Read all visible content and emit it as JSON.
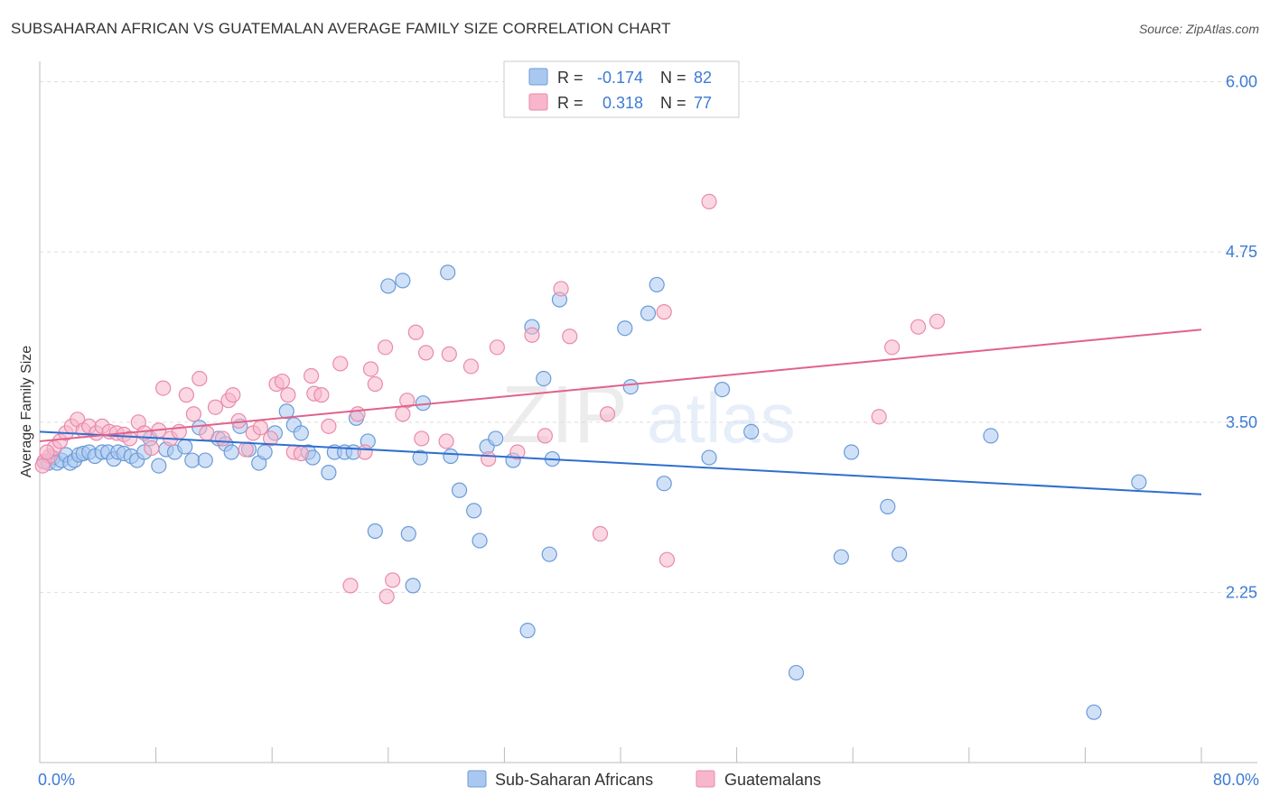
{
  "title": "SUBSAHARAN AFRICAN VS GUATEMALAN AVERAGE FAMILY SIZE CORRELATION CHART",
  "source": "Source: ZipAtlas.com",
  "watermark": {
    "part1": "ZIP",
    "part2": "atlas"
  },
  "colors": {
    "blue_fill": "#a9c8f0",
    "blue_stroke": "#6b9bd8",
    "blue_line": "#2f6fcf",
    "pink_fill": "#f7b6cb",
    "pink_stroke": "#e98aab",
    "pink_line": "#e0628d",
    "axis_text": "#3d7bd4",
    "grid": "#dddddd",
    "axis": "#bbbbbb"
  },
  "legend_top": [
    {
      "r_label": "R =",
      "r_value": "-0.174",
      "n_label": "N =",
      "n_value": "82",
      "color": "blue"
    },
    {
      "r_label": "R =",
      "r_value": "0.318",
      "n_label": "N =",
      "n_value": "77",
      "color": "pink"
    }
  ],
  "chart_data": {
    "type": "scatter",
    "xlabel": "",
    "ylabel": "Average Family Size",
    "xlim": [
      0,
      80
    ],
    "ylim": [
      1.0,
      6.15
    ],
    "x_tick_labels": [
      {
        "value": 0,
        "label": "0.0%"
      },
      {
        "value": 80,
        "label": "80.0%"
      }
    ],
    "x_minor_ticks": [
      0,
      8,
      16,
      24,
      32,
      40,
      48,
      56,
      64,
      72,
      80
    ],
    "y_ticks": [
      {
        "value": 2.25,
        "label": "2.25"
      },
      {
        "value": 3.5,
        "label": "3.50"
      },
      {
        "value": 4.75,
        "label": "4.75"
      },
      {
        "value": 6.0,
        "label": "6.00"
      }
    ],
    "grid": true,
    "legend_position": "bottom",
    "series": [
      {
        "name": "Sub-Saharan Africans",
        "color": "blue",
        "trend": {
          "x": [
            0,
            80
          ],
          "y": [
            3.43,
            2.97
          ]
        },
        "points": [
          [
            0.3,
            3.21
          ],
          [
            0.6,
            3.2
          ],
          [
            0.9,
            3.24
          ],
          [
            1.2,
            3.2
          ],
          [
            1.5,
            3.22
          ],
          [
            1.8,
            3.26
          ],
          [
            2.1,
            3.2
          ],
          [
            2.4,
            3.22
          ],
          [
            2.7,
            3.26
          ],
          [
            3.0,
            3.27
          ],
          [
            3.4,
            3.28
          ],
          [
            3.8,
            3.25
          ],
          [
            4.3,
            3.28
          ],
          [
            4.7,
            3.28
          ],
          [
            5.1,
            3.23
          ],
          [
            5.4,
            3.28
          ],
          [
            5.8,
            3.27
          ],
          [
            6.3,
            3.25
          ],
          [
            6.7,
            3.22
          ],
          [
            7.2,
            3.28
          ],
          [
            7.6,
            3.38
          ],
          [
            8.2,
            3.18
          ],
          [
            8.7,
            3.3
          ],
          [
            9.3,
            3.28
          ],
          [
            10.0,
            3.32
          ],
          [
            10.5,
            3.22
          ],
          [
            11.0,
            3.46
          ],
          [
            11.4,
            3.22
          ],
          [
            12.3,
            3.38
          ],
          [
            12.8,
            3.34
          ],
          [
            13.2,
            3.28
          ],
          [
            13.8,
            3.47
          ],
          [
            14.4,
            3.3
          ],
          [
            15.1,
            3.2
          ],
          [
            15.5,
            3.28
          ],
          [
            16.2,
            3.42
          ],
          [
            17.0,
            3.58
          ],
          [
            17.5,
            3.48
          ],
          [
            18.0,
            3.42
          ],
          [
            18.5,
            3.28
          ],
          [
            18.8,
            3.24
          ],
          [
            19.9,
            3.13
          ],
          [
            20.3,
            3.28
          ],
          [
            21.0,
            3.28
          ],
          [
            21.6,
            3.28
          ],
          [
            21.8,
            3.53
          ],
          [
            22.6,
            3.36
          ],
          [
            23.1,
            2.7
          ],
          [
            24.0,
            4.5
          ],
          [
            25.0,
            4.54
          ],
          [
            25.4,
            2.68
          ],
          [
            25.7,
            2.3
          ],
          [
            26.2,
            3.24
          ],
          [
            26.4,
            3.64
          ],
          [
            28.1,
            4.6
          ],
          [
            28.3,
            3.25
          ],
          [
            28.9,
            3.0
          ],
          [
            29.9,
            2.85
          ],
          [
            30.3,
            2.63
          ],
          [
            30.8,
            3.32
          ],
          [
            31.4,
            3.38
          ],
          [
            32.6,
            3.22
          ],
          [
            33.6,
            1.97
          ],
          [
            33.9,
            4.2
          ],
          [
            34.7,
            3.82
          ],
          [
            35.1,
            2.53
          ],
          [
            35.3,
            3.23
          ],
          [
            35.8,
            4.4
          ],
          [
            40.3,
            4.19
          ],
          [
            40.7,
            3.76
          ],
          [
            41.9,
            4.3
          ],
          [
            43.0,
            3.05
          ],
          [
            42.5,
            4.51
          ],
          [
            46.1,
            3.24
          ],
          [
            47.0,
            3.74
          ],
          [
            49.0,
            3.43
          ],
          [
            52.1,
            1.66
          ],
          [
            55.2,
            2.51
          ],
          [
            55.9,
            3.28
          ],
          [
            58.4,
            2.88
          ],
          [
            59.2,
            2.53
          ],
          [
            65.5,
            3.4
          ],
          [
            75.7,
            3.06
          ],
          [
            72.6,
            1.37
          ]
        ]
      },
      {
        "name": "Guatemalans",
        "color": "pink",
        "trend": {
          "x": [
            0,
            80
          ],
          "y": [
            3.36,
            4.18
          ]
        },
        "points": [
          [
            0.3,
            3.21
          ],
          [
            0.7,
            3.25
          ],
          [
            1.0,
            3.31
          ],
          [
            1.4,
            3.36
          ],
          [
            1.8,
            3.42
          ],
          [
            2.2,
            3.47
          ],
          [
            2.6,
            3.52
          ],
          [
            3.0,
            3.44
          ],
          [
            3.4,
            3.47
          ],
          [
            3.9,
            3.42
          ],
          [
            4.3,
            3.47
          ],
          [
            4.8,
            3.43
          ],
          [
            5.3,
            3.42
          ],
          [
            5.8,
            3.41
          ],
          [
            6.2,
            3.38
          ],
          [
            6.8,
            3.5
          ],
          [
            7.2,
            3.42
          ],
          [
            7.7,
            3.31
          ],
          [
            8.2,
            3.44
          ],
          [
            8.5,
            3.75
          ],
          [
            9.0,
            3.38
          ],
          [
            9.6,
            3.43
          ],
          [
            10.1,
            3.7
          ],
          [
            10.6,
            3.56
          ],
          [
            11.0,
            3.82
          ],
          [
            11.5,
            3.42
          ],
          [
            12.1,
            3.61
          ],
          [
            12.6,
            3.38
          ],
          [
            13.0,
            3.66
          ],
          [
            13.3,
            3.7
          ],
          [
            13.7,
            3.51
          ],
          [
            14.2,
            3.3
          ],
          [
            14.7,
            3.42
          ],
          [
            15.2,
            3.46
          ],
          [
            15.9,
            3.38
          ],
          [
            16.3,
            3.78
          ],
          [
            16.7,
            3.8
          ],
          [
            17.1,
            3.7
          ],
          [
            17.5,
            3.28
          ],
          [
            18.0,
            3.27
          ],
          [
            18.7,
            3.84
          ],
          [
            18.9,
            3.71
          ],
          [
            19.4,
            3.7
          ],
          [
            19.9,
            3.47
          ],
          [
            20.7,
            3.93
          ],
          [
            21.4,
            2.3
          ],
          [
            21.9,
            3.56
          ],
          [
            22.4,
            3.28
          ],
          [
            22.8,
            3.89
          ],
          [
            23.1,
            3.78
          ],
          [
            23.9,
            2.22
          ],
          [
            23.8,
            4.05
          ],
          [
            24.3,
            2.34
          ],
          [
            25.0,
            3.56
          ],
          [
            25.3,
            3.66
          ],
          [
            25.9,
            4.16
          ],
          [
            26.3,
            3.38
          ],
          [
            26.6,
            4.01
          ],
          [
            28.0,
            3.36
          ],
          [
            28.2,
            4.0
          ],
          [
            29.7,
            3.91
          ],
          [
            30.9,
            3.23
          ],
          [
            31.5,
            4.05
          ],
          [
            32.9,
            3.28
          ],
          [
            33.9,
            4.14
          ],
          [
            34.8,
            3.4
          ],
          [
            35.9,
            4.48
          ],
          [
            36.5,
            4.13
          ],
          [
            38.6,
            2.68
          ],
          [
            39.1,
            3.56
          ],
          [
            43.0,
            4.31
          ],
          [
            43.2,
            2.49
          ],
          [
            46.1,
            5.12
          ],
          [
            57.8,
            3.54
          ],
          [
            58.7,
            4.05
          ],
          [
            60.5,
            4.2
          ],
          [
            61.8,
            4.24
          ],
          [
            0.2,
            3.18
          ],
          [
            0.5,
            3.28
          ]
        ]
      }
    ]
  },
  "legend_bottom": [
    {
      "label": "Sub-Saharan Africans",
      "color": "blue"
    },
    {
      "label": "Guatemalans",
      "color": "pink"
    }
  ]
}
